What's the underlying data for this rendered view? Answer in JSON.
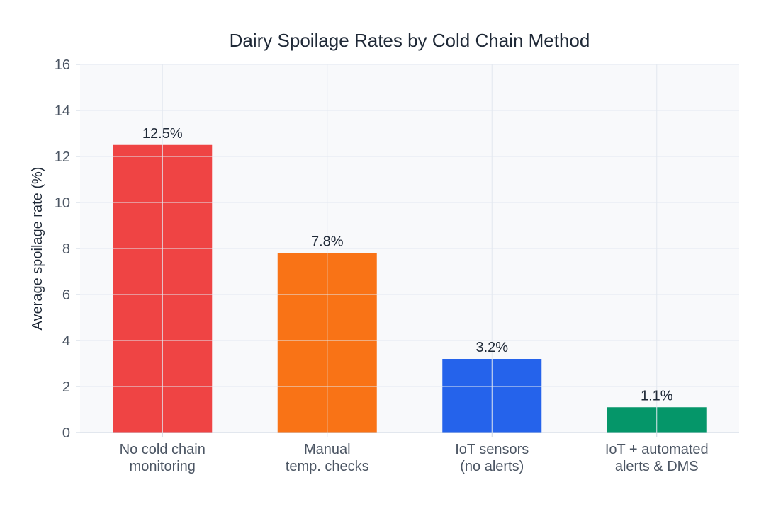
{
  "chart_data": {
    "type": "bar",
    "title": "Dairy Spoilage Rates by Cold Chain Method",
    "xlabel": "",
    "ylabel": "Average spoilage rate (%)",
    "ylim": [
      0,
      16
    ],
    "yticks": [
      0,
      2,
      4,
      6,
      8,
      10,
      12,
      14,
      16
    ],
    "grid": true,
    "categories": [
      [
        "No cold chain",
        "monitoring"
      ],
      [
        "Manual",
        "temp. checks"
      ],
      [
        "IoT sensors",
        "(no alerts)"
      ],
      [
        "IoT + automated",
        "alerts & DMS"
      ]
    ],
    "values": [
      12.5,
      7.8,
      3.2,
      1.1
    ],
    "data_labels": [
      "12.5%",
      "7.8%",
      "3.2%",
      "1.1%"
    ],
    "colors": [
      "#ef4444",
      "#f97316",
      "#2563eb",
      "#059669"
    ],
    "plot_background": "#f8f9fb",
    "grid_color": "#e2e8f0"
  }
}
